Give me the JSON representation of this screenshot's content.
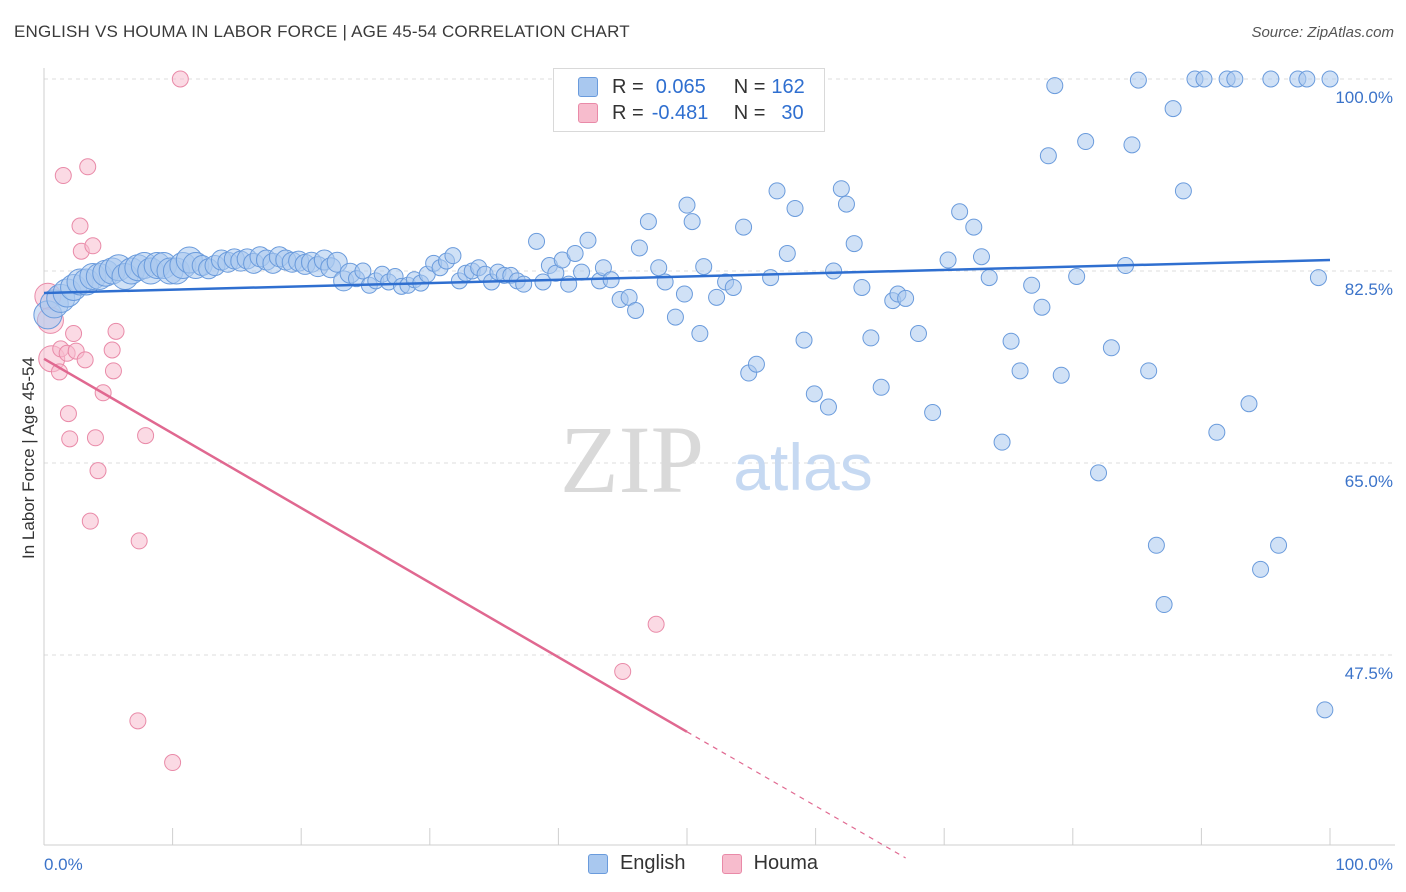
{
  "title": "ENGLISH VS HOUMA IN LABOR FORCE | AGE 45-54 CORRELATION CHART",
  "source": "Source: ZipAtlas.com",
  "watermark": {
    "zip": "ZIP",
    "atlas": "atlas"
  },
  "legend_stats": [
    {
      "r_label": "R =",
      "r_value": "0.065",
      "n_label": "N =",
      "n_value": "162"
    },
    {
      "r_label": "R =",
      "r_value": "-0.481",
      "n_label": "N =",
      "n_value": "30"
    }
  ],
  "colors": {
    "english_fill": "#a9c8ef",
    "english_stroke": "#6a9bdc",
    "english_line": "#2f6fd0",
    "houma_fill": "#f7bccd",
    "houma_stroke": "#e98aa8",
    "houma_line": "#e06890",
    "tick_label": "#3b73c9",
    "grid": "#dcdcdc"
  },
  "chart_data": {
    "type": "scatter",
    "title": "ENGLISH VS HOUMA IN LABOR FORCE | AGE 45-54 CORRELATION CHART",
    "xlabel": "",
    "ylabel": "In Labor Force | Age 45-54",
    "xlim": [
      0,
      100
    ],
    "ylim": [
      28,
      101
    ],
    "x_tick_labels": [
      "0.0%",
      "100.0%"
    ],
    "y_ticks": [
      47.5,
      65.0,
      82.5,
      100.0
    ],
    "y_tick_labels": [
      "47.5%",
      "65.0%",
      "82.5%",
      "100.0%"
    ],
    "legend_position": "bottom-center",
    "series": [
      {
        "name": "English",
        "r": 0.065,
        "n": 162,
        "trend": {
          "x": [
            0,
            100
          ],
          "y": [
            80.5,
            83.5
          ]
        },
        "points": [
          [
            0.3,
            78.5
          ],
          [
            0.8,
            79.5
          ],
          [
            1.3,
            80
          ],
          [
            1.8,
            80.5
          ],
          [
            2.3,
            81
          ],
          [
            2.8,
            81.5
          ],
          [
            3.3,
            81.5
          ],
          [
            3.8,
            82
          ],
          [
            4.3,
            82
          ],
          [
            4.8,
            82.3
          ],
          [
            5.3,
            82.5
          ],
          [
            5.8,
            82.8
          ],
          [
            6.3,
            82
          ],
          [
            6.8,
            82.5
          ],
          [
            7.3,
            82.8
          ],
          [
            7.8,
            83
          ],
          [
            8.3,
            82.5
          ],
          [
            8.8,
            83
          ],
          [
            9.3,
            83
          ],
          [
            9.8,
            82.5
          ],
          [
            10.3,
            82.5
          ],
          [
            10.8,
            83
          ],
          [
            11.3,
            83.5
          ],
          [
            11.8,
            83
          ],
          [
            12.3,
            83
          ],
          [
            12.8,
            82.7
          ],
          [
            13.3,
            83
          ],
          [
            13.8,
            83.5
          ],
          [
            14.3,
            83.3
          ],
          [
            14.8,
            83.6
          ],
          [
            15.3,
            83.4
          ],
          [
            15.8,
            83.6
          ],
          [
            16.3,
            83.2
          ],
          [
            16.8,
            83.8
          ],
          [
            17.3,
            83.5
          ],
          [
            17.8,
            83.2
          ],
          [
            18.3,
            83.8
          ],
          [
            18.8,
            83.5
          ],
          [
            19.3,
            83.3
          ],
          [
            19.8,
            83.4
          ],
          [
            20.3,
            83.1
          ],
          [
            20.8,
            83.3
          ],
          [
            21.3,
            82.9
          ],
          [
            21.8,
            83.5
          ],
          [
            22.3,
            82.8
          ],
          [
            22.8,
            83.3
          ],
          [
            23.3,
            81.6
          ],
          [
            23.8,
            82.3
          ],
          [
            24.3,
            81.8
          ],
          [
            24.8,
            82.5
          ],
          [
            25.3,
            81.2
          ],
          [
            25.8,
            81.6
          ],
          [
            26.3,
            82.2
          ],
          [
            26.8,
            81.5
          ],
          [
            27.3,
            82
          ],
          [
            27.8,
            81.1
          ],
          [
            28.3,
            81.2
          ],
          [
            28.8,
            81.7
          ],
          [
            29.3,
            81.4
          ],
          [
            29.8,
            82.2
          ],
          [
            30.3,
            83.2
          ],
          [
            30.8,
            82.8
          ],
          [
            31.3,
            83.4
          ],
          [
            31.8,
            83.9
          ],
          [
            32.3,
            81.6
          ],
          [
            32.8,
            82.3
          ],
          [
            33.3,
            82.5
          ],
          [
            33.8,
            82.8
          ],
          [
            34.3,
            82.2
          ],
          [
            34.8,
            81.5
          ],
          [
            35.3,
            82.4
          ],
          [
            35.8,
            82.1
          ],
          [
            36.3,
            82.1
          ],
          [
            36.8,
            81.6
          ],
          [
            37.3,
            81.3
          ],
          [
            38.3,
            85.2
          ],
          [
            38.8,
            81.5
          ],
          [
            39.3,
            83
          ],
          [
            39.8,
            82.3
          ],
          [
            40.3,
            83.5
          ],
          [
            40.8,
            81.3
          ],
          [
            41.3,
            84.1
          ],
          [
            41.8,
            82.4
          ],
          [
            42.3,
            85.3
          ],
          [
            43.2,
            81.6
          ],
          [
            43.5,
            82.8
          ],
          [
            44.1,
            81.7
          ],
          [
            44.8,
            79.9
          ],
          [
            45.5,
            80.1
          ],
          [
            46,
            78.9
          ],
          [
            46.3,
            84.6
          ],
          [
            47.0,
            87.0
          ],
          [
            47.8,
            82.8
          ],
          [
            48.3,
            81.5
          ],
          [
            49.1,
            78.3
          ],
          [
            49.8,
            80.4
          ],
          [
            50.0,
            88.5
          ],
          [
            50.4,
            87.0
          ],
          [
            51.0,
            76.8
          ],
          [
            51.3,
            82.9
          ],
          [
            52.3,
            80.1
          ],
          [
            53.0,
            81.5
          ],
          [
            53.6,
            81.0
          ],
          [
            54.4,
            86.5
          ],
          [
            54.8,
            73.2
          ],
          [
            55.4,
            74.0
          ],
          [
            56.5,
            81.9
          ],
          [
            57.0,
            89.8
          ],
          [
            57.8,
            84.1
          ],
          [
            58.4,
            88.2
          ],
          [
            59.1,
            76.2
          ],
          [
            59.9,
            71.3
          ],
          [
            61.0,
            70.1
          ],
          [
            61.4,
            82.5
          ],
          [
            62.0,
            90.0
          ],
          [
            62.4,
            88.6
          ],
          [
            63.0,
            85.0
          ],
          [
            63.6,
            81.0
          ],
          [
            64.3,
            76.4
          ],
          [
            65.1,
            71.9
          ],
          [
            66.0,
            79.8
          ],
          [
            66.4,
            80.4
          ],
          [
            67.0,
            80.0
          ],
          [
            68.0,
            76.8
          ],
          [
            69.1,
            69.6
          ],
          [
            70.3,
            83.5
          ],
          [
            71.2,
            87.9
          ],
          [
            72.3,
            86.5
          ],
          [
            72.9,
            83.8
          ],
          [
            73.5,
            81.9
          ],
          [
            74.5,
            66.9
          ],
          [
            75.2,
            76.1
          ],
          [
            75.9,
            73.4
          ],
          [
            76.8,
            81.2
          ],
          [
            77.6,
            79.2
          ],
          [
            78.1,
            93.0
          ],
          [
            78.6,
            99.4
          ],
          [
            79.1,
            73.0
          ],
          [
            80.3,
            82.0
          ],
          [
            81.0,
            94.3
          ],
          [
            82.0,
            64.1
          ],
          [
            83.0,
            75.5
          ],
          [
            84.1,
            83.0
          ],
          [
            84.6,
            94.0
          ],
          [
            85.1,
            99.9
          ],
          [
            85.9,
            73.4
          ],
          [
            86.5,
            57.5
          ],
          [
            87.1,
            52.1
          ],
          [
            87.8,
            97.3
          ],
          [
            88.6,
            89.8
          ],
          [
            89.5,
            100.0
          ],
          [
            90.2,
            100.0
          ],
          [
            91.2,
            67.8
          ],
          [
            92.0,
            100.0
          ],
          [
            92.6,
            100.0
          ],
          [
            93.7,
            70.4
          ],
          [
            94.6,
            55.3
          ],
          [
            95.4,
            100.0
          ],
          [
            96.0,
            57.5
          ],
          [
            97.5,
            100.0
          ],
          [
            98.2,
            100.0
          ],
          [
            99.1,
            81.9
          ],
          [
            99.6,
            42.5
          ],
          [
            100.0,
            100.0
          ]
        ]
      },
      {
        "name": "Houma",
        "r": -0.481,
        "n": 30,
        "trend": {
          "x": [
            0,
            50
          ],
          "y": [
            74.5,
            40.5
          ]
        },
        "trend_dashed": {
          "x": [
            50,
            67
          ],
          "y": [
            40.5,
            29.0
          ]
        },
        "points": [
          [
            0.3,
            80.2
          ],
          [
            0.5,
            78.0
          ],
          [
            0.6,
            74.5
          ],
          [
            1.2,
            73.3
          ],
          [
            1.3,
            75.4
          ],
          [
            1.5,
            91.2
          ],
          [
            1.8,
            75.0
          ],
          [
            1.9,
            69.5
          ],
          [
            2.0,
            67.2
          ],
          [
            2.3,
            76.8
          ],
          [
            2.5,
            75.2
          ],
          [
            2.8,
            86.6
          ],
          [
            2.9,
            84.3
          ],
          [
            3.2,
            74.4
          ],
          [
            3.4,
            92.0
          ],
          [
            3.6,
            59.7
          ],
          [
            3.8,
            84.8
          ],
          [
            4.0,
            67.3
          ],
          [
            4.2,
            64.3
          ],
          [
            4.6,
            71.4
          ],
          [
            5.3,
            75.3
          ],
          [
            5.4,
            73.4
          ],
          [
            5.6,
            77.0
          ],
          [
            7.4,
            57.9
          ],
          [
            7.3,
            41.5
          ],
          [
            7.9,
            67.5
          ],
          [
            10.0,
            37.7
          ],
          [
            10.6,
            100.0
          ],
          [
            45.0,
            46.0
          ],
          [
            47.6,
            50.3
          ]
        ]
      }
    ]
  }
}
